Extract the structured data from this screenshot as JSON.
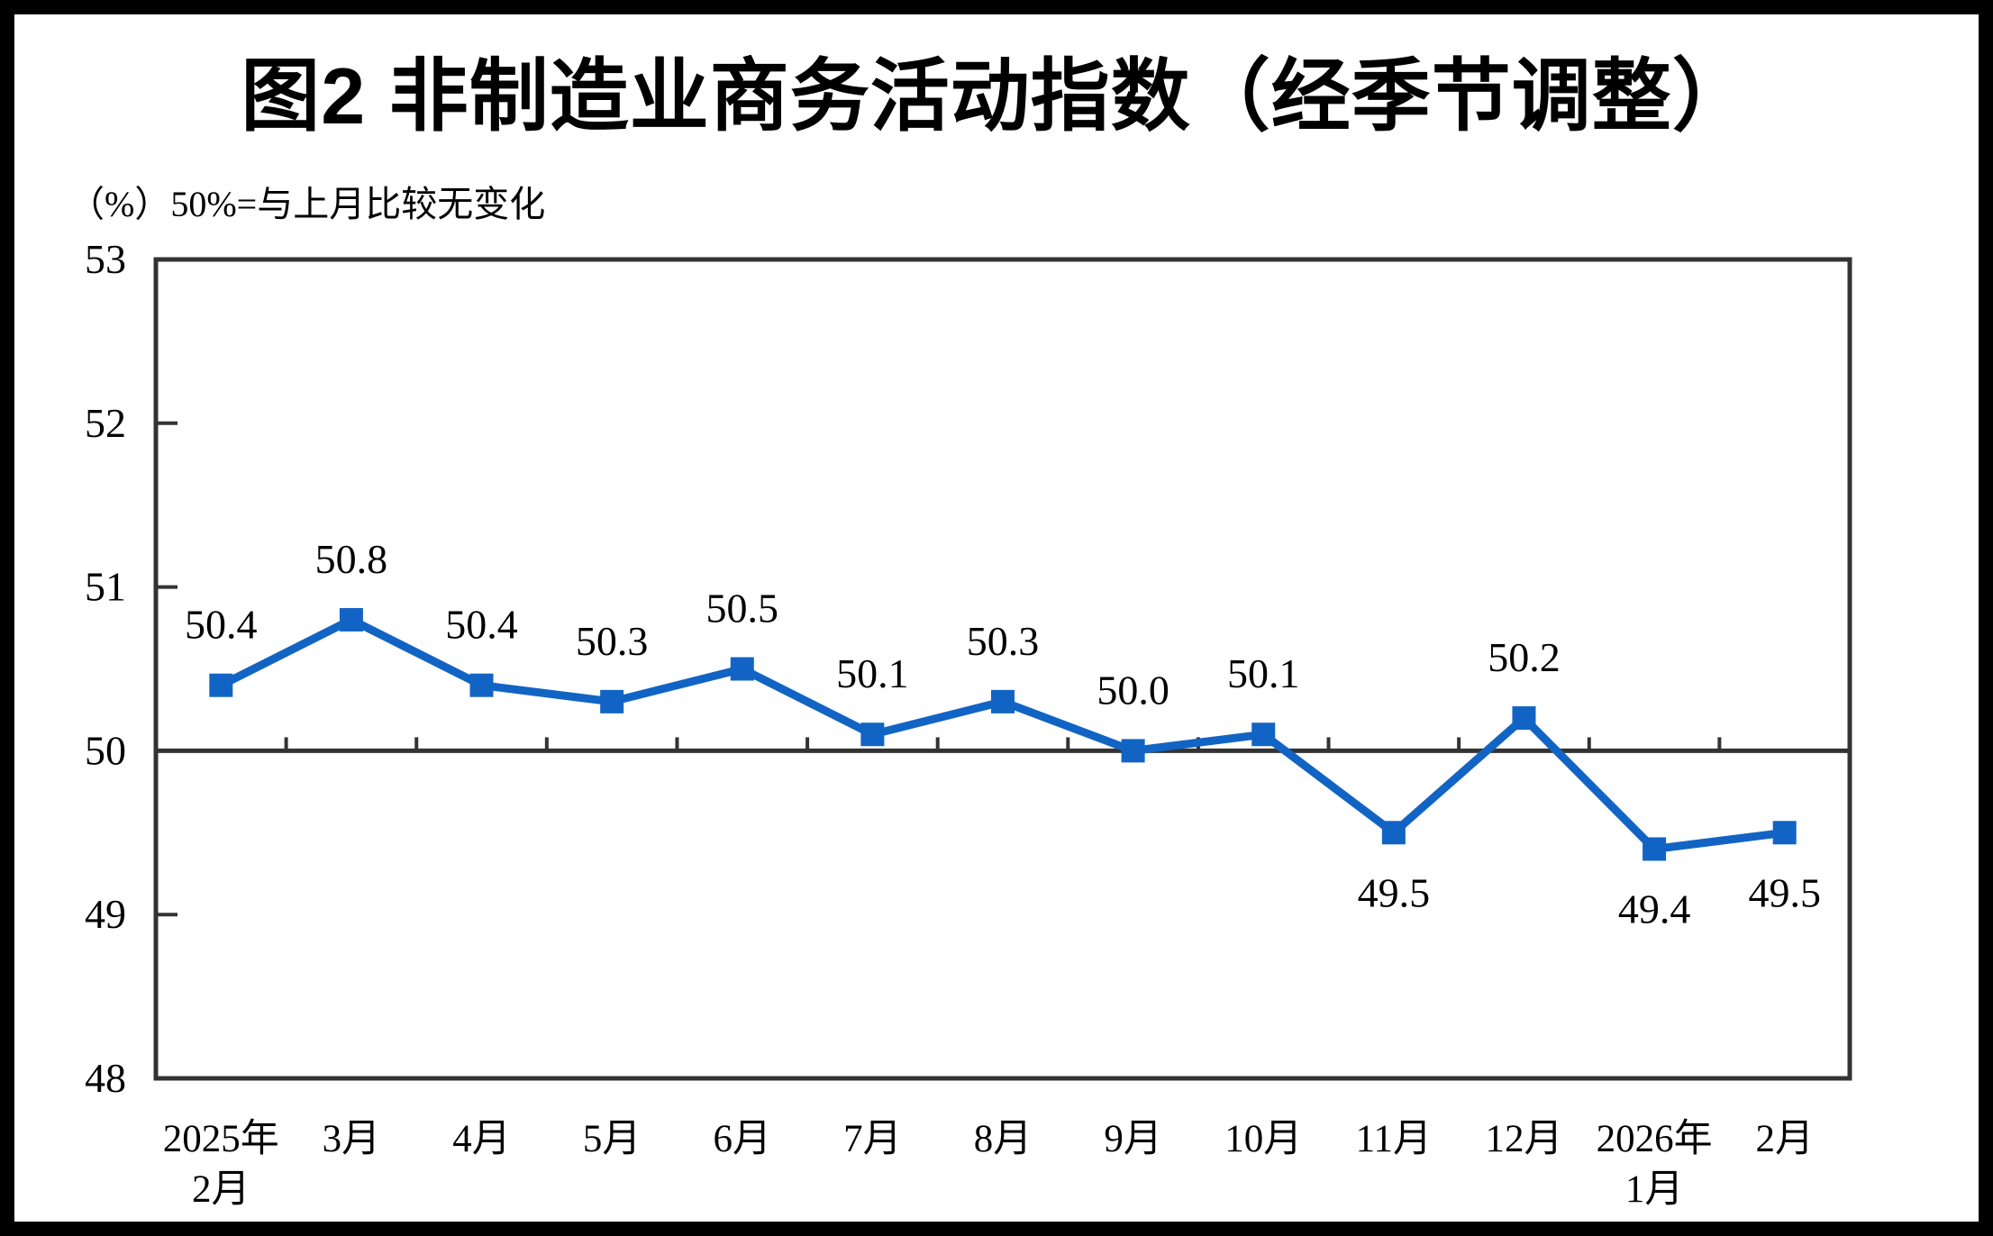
{
  "page": {
    "title": "图2 非制造业商务活动指数（经季节调整）",
    "unit_note": "（%）50%=与上月比较无变化"
  },
  "chart_data": {
    "type": "line",
    "title": "图2 非制造业商务活动指数（经季节调整）",
    "subtitle": "（%）50%=与上月比较无变化",
    "categories": [
      "2025年\n2月",
      "3月",
      "4月",
      "5月",
      "6月",
      "7月",
      "8月",
      "9月",
      "10月",
      "11月",
      "12月",
      "2026年\n1月",
      "2月"
    ],
    "values": [
      50.4,
      50.8,
      50.4,
      50.3,
      50.5,
      50.1,
      50.3,
      50.0,
      50.1,
      49.5,
      50.2,
      49.4,
      49.5
    ],
    "data_labels": [
      "50.4",
      "50.8",
      "50.4",
      "50.3",
      "50.5",
      "50.1",
      "50.3",
      "50.0",
      "50.1",
      "49.5",
      "50.2",
      "49.4",
      "49.5"
    ],
    "label_positions": [
      "above",
      "above",
      "above",
      "above",
      "above",
      "above",
      "above",
      "above",
      "above",
      "below",
      "above",
      "below",
      "below"
    ],
    "ylim": [
      48,
      53
    ],
    "yticks": [
      48,
      49,
      50,
      51,
      52,
      53
    ],
    "reference_line_y": 50,
    "grid": "off",
    "legend": "none",
    "marker": "square",
    "line_color": "#1264C4",
    "axis_color": "#333333"
  }
}
